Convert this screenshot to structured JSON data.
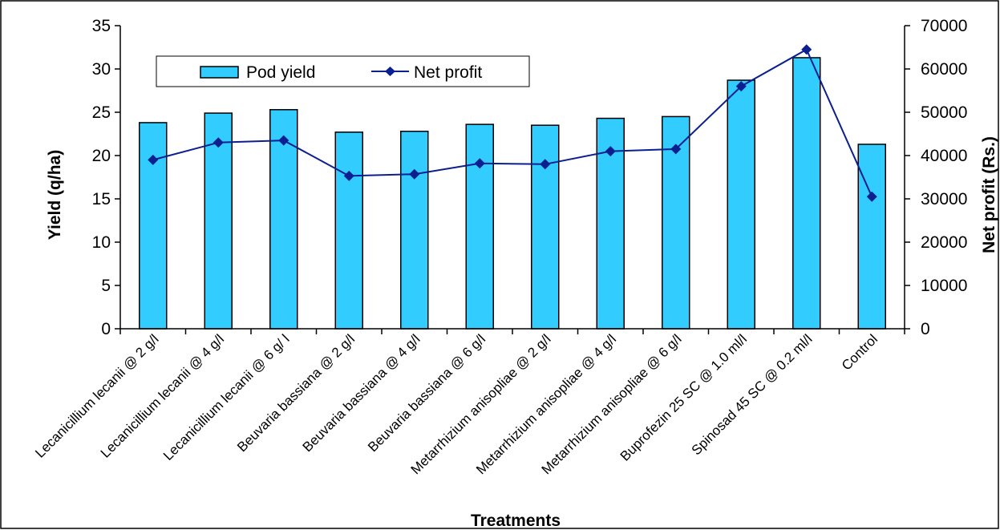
{
  "chart_data": {
    "type": "bar",
    "categories": [
      "Lecanicillium lecanii @ 2 g/l",
      "Lecanicillium lecanii @ 4 g/l",
      "Lecanicillium lecanii @ 6 g/ l",
      "Beuvaria bassiana @ 2 g/l",
      "Beuvaria bassiana @ 4 g/l",
      "Beuvaria bassiana @ 6 g/l",
      "Metarrhizium anisopliae @ 2 g/l",
      "Metarrhizium anisopliae @ 4 g/l",
      "Metarrhizium anisopliae @ 6 g/l",
      "Buprofezin 25 SC @ 1.0 ml/l",
      "Spinosad 45 SC @ 0.2 ml/l",
      "Control"
    ],
    "series": [
      {
        "name": "Pod yield",
        "type": "bar",
        "axis": "left",
        "values": [
          23.8,
          24.9,
          25.3,
          22.7,
          22.8,
          23.6,
          23.5,
          24.3,
          24.5,
          28.7,
          31.3,
          21.3
        ]
      },
      {
        "name": "Net profit",
        "type": "line",
        "axis": "right",
        "values": [
          39000,
          43000,
          43500,
          35300,
          35700,
          38200,
          38000,
          41000,
          41500,
          56000,
          64500,
          30500
        ]
      }
    ],
    "xlabel": "Treatments",
    "ylabel": "Yield (q/ha)",
    "y2label": "Net profit (Rs.)",
    "ylim": [
      0,
      35
    ],
    "y2lim": [
      0,
      70000
    ],
    "yticks": [
      "0",
      "5",
      "10",
      "15",
      "20",
      "25",
      "30",
      "35"
    ],
    "y2ticks": [
      "0",
      "10000",
      "20000",
      "30000",
      "40000",
      "50000",
      "60000",
      "70000"
    ],
    "grid": false,
    "legend": "top-left",
    "colors": {
      "bar_fill": "#33CCFF",
      "bar_stroke": "#000000",
      "line": "#0B1F8F",
      "marker": "#0B1F8F"
    }
  }
}
